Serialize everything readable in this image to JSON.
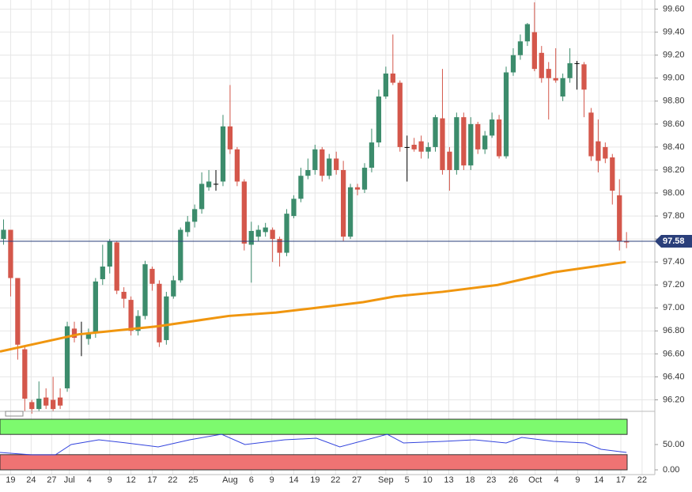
{
  "chart_data": {
    "type": "candlestick",
    "open": [
      97.6,
      97.68,
      97.26,
      96.64,
      96.18,
      96.12,
      96.22,
      96.2,
      96.22,
      96.3,
      96.82,
      96.78,
      96.73,
      96.78,
      97.25,
      97.36,
      97.57,
      97.14,
      97.07,
      96.8,
      96.93,
      97.34,
      97.21,
      96.72,
      97.1,
      97.24,
      97.66,
      97.75,
      97.86,
      98.05,
      98.08,
      98.1,
      98.58,
      98.38,
      98.1,
      97.55,
      97.62,
      97.66,
      97.68,
      97.6,
      97.48,
      97.8,
      97.95,
      98.15,
      98.2,
      98.38,
      98.15,
      98.3,
      98.2,
      97.62,
      98.05,
      98.03,
      98.22,
      98.44,
      98.84,
      99.04,
      98.96,
      98.4,
      98.42,
      98.45,
      98.36,
      98.4,
      98.65,
      98.36,
      98.2,
      98.66,
      98.24,
      98.6,
      98.38,
      98.5,
      98.64,
      98.32,
      99.05,
      99.2,
      99.32,
      99.4,
      99.22,
      99.08,
      99.0,
      98.84,
      99.0,
      99.13,
      99.12,
      98.7,
      98.45,
      98.4,
      98.31,
      97.98,
      97.58
    ],
    "high": [
      97.77,
      97.68,
      97.26,
      96.66,
      96.2,
      96.36,
      96.3,
      96.4,
      96.3,
      96.88,
      96.88,
      96.88,
      96.82,
      97.26,
      97.55,
      97.6,
      97.58,
      97.18,
      97.1,
      96.98,
      97.41,
      97.36,
      97.24,
      97.14,
      97.28,
      97.7,
      97.8,
      97.9,
      98.18,
      98.2,
      98.2,
      98.68,
      98.94,
      98.4,
      98.12,
      97.75,
      97.72,
      97.74,
      97.7,
      97.62,
      97.86,
      97.98,
      98.22,
      98.3,
      98.42,
      98.4,
      98.34,
      98.36,
      98.28,
      98.08,
      98.08,
      98.26,
      98.56,
      98.9,
      99.1,
      99.38,
      98.98,
      98.5,
      98.48,
      98.5,
      98.44,
      98.68,
      99.08,
      98.4,
      98.7,
      98.7,
      98.66,
      98.62,
      98.54,
      98.7,
      98.68,
      99.1,
      99.26,
      99.38,
      99.48,
      99.66,
      99.28,
      99.14,
      99.26,
      99.04,
      99.26,
      99.15,
      99.14,
      98.74,
      98.64,
      98.44,
      98.34,
      98.12,
      97.66
    ],
    "low": [
      97.55,
      97.1,
      96.55,
      96.1,
      96.08,
      96.1,
      96.12,
      96.1,
      96.12,
      96.27,
      96.7,
      96.58,
      96.68,
      96.74,
      97.2,
      97.3,
      97.12,
      97.0,
      96.76,
      96.76,
      96.9,
      97.15,
      96.66,
      96.68,
      97.08,
      97.22,
      97.62,
      97.7,
      97.82,
      98.02,
      98.02,
      98.06,
      98.34,
      98.06,
      97.5,
      97.22,
      97.58,
      97.62,
      97.4,
      97.36,
      97.45,
      97.78,
      97.92,
      98.12,
      98.16,
      98.1,
      98.12,
      98.16,
      97.58,
      97.6,
      97.98,
      98.0,
      98.18,
      98.4,
      98.82,
      98.94,
      98.36,
      98.1,
      98.36,
      98.3,
      98.3,
      98.36,
      98.16,
      98.02,
      98.16,
      98.2,
      98.2,
      98.34,
      98.34,
      98.48,
      98.3,
      98.3,
      99.02,
      99.16,
      99.28,
      99.06,
      98.96,
      98.64,
      98.96,
      98.8,
      98.96,
      98.9,
      98.66,
      98.28,
      98.18,
      98.26,
      97.9,
      97.5,
      97.52
    ],
    "close": [
      97.68,
      97.26,
      96.68,
      96.21,
      96.12,
      96.21,
      96.15,
      96.12,
      96.15,
      96.84,
      96.74,
      96.78,
      96.78,
      97.23,
      97.36,
      97.58,
      97.15,
      97.08,
      96.8,
      96.93,
      97.38,
      97.21,
      96.7,
      97.1,
      97.24,
      97.68,
      97.75,
      97.86,
      98.08,
      98.1,
      98.08,
      98.58,
      98.38,
      98.1,
      97.56,
      97.67,
      97.68,
      97.7,
      97.6,
      97.48,
      97.82,
      97.95,
      98.15,
      98.2,
      98.38,
      98.15,
      98.3,
      98.2,
      97.62,
      98.05,
      98.03,
      98.22,
      98.44,
      98.84,
      99.04,
      98.96,
      98.4,
      98.4,
      98.38,
      98.36,
      98.4,
      98.66,
      98.2,
      98.2,
      98.66,
      98.24,
      98.6,
      98.38,
      98.5,
      98.64,
      98.32,
      99.05,
      99.2,
      99.32,
      99.47,
      99.08,
      99.0,
      99.0,
      98.98,
      99.0,
      99.13,
      99.13,
      98.9,
      98.32,
      98.28,
      98.3,
      98.02,
      97.58,
      97.57
    ],
    "up_color": "#3c8c6c",
    "down_color": "#d4574b",
    "ma": {
      "color": "#f0960f",
      "x": [
        -0.5,
        10.6,
        21.8,
        31.8,
        38.5,
        44.1,
        50.8,
        55.3,
        62,
        69.8,
        77.7,
        87.9
      ],
      "values": [
        96.62,
        96.77,
        96.84,
        96.93,
        96.96,
        97.0,
        97.05,
        97.1,
        97.14,
        97.2,
        97.31,
        97.4
      ]
    },
    "last_price": 97.58,
    "xlim": [
      -0.5,
      92
    ],
    "ylim": [
      96.1,
      99.68
    ],
    "yticks": [
      {
        "value": 96.2,
        "label": "96.20"
      },
      {
        "value": 96.4,
        "label": "96.40"
      },
      {
        "value": 96.6,
        "label": "96.60"
      },
      {
        "value": 96.8,
        "label": "96.80"
      },
      {
        "value": 97.0,
        "label": "97.00"
      },
      {
        "value": 97.2,
        "label": "97.20"
      },
      {
        "value": 97.4,
        "label": "97.40"
      },
      {
        "value": 97.6,
        "label": "97.60"
      },
      {
        "value": 97.8,
        "label": "97.80"
      },
      {
        "value": 98.0,
        "label": "98.00"
      },
      {
        "value": 98.2,
        "label": "98.20"
      },
      {
        "value": 98.4,
        "label": "98.40"
      },
      {
        "value": 98.6,
        "label": "98.60"
      },
      {
        "value": 98.8,
        "label": "98.80"
      },
      {
        "value": 99.0,
        "label": "99.00"
      },
      {
        "value": 99.2,
        "label": "99.20"
      },
      {
        "value": 99.4,
        "label": "99.40"
      },
      {
        "value": 99.6,
        "label": "99.60"
      }
    ],
    "xticks": [
      {
        "value": 1,
        "label": "19"
      },
      {
        "value": 3.9,
        "label": "24"
      },
      {
        "value": 6.8,
        "label": "27"
      },
      {
        "value": 9.3,
        "label": "Jul"
      },
      {
        "value": 12.1,
        "label": "4"
      },
      {
        "value": 15,
        "label": "9"
      },
      {
        "value": 18,
        "label": "12"
      },
      {
        "value": 21,
        "label": "17"
      },
      {
        "value": 23.9,
        "label": "22"
      },
      {
        "value": 26.8,
        "label": "25"
      },
      {
        "value": 32,
        "label": "Aug"
      },
      {
        "value": 35,
        "label": "6"
      },
      {
        "value": 37.9,
        "label": "9"
      },
      {
        "value": 41,
        "label": "14"
      },
      {
        "value": 44,
        "label": "19"
      },
      {
        "value": 46.9,
        "label": "22"
      },
      {
        "value": 49.9,
        "label": "27"
      },
      {
        "value": 54,
        "label": "Sep"
      },
      {
        "value": 57,
        "label": "5"
      },
      {
        "value": 59.9,
        "label": "10"
      },
      {
        "value": 62.9,
        "label": "13"
      },
      {
        "value": 65.9,
        "label": "18"
      },
      {
        "value": 68.9,
        "label": "23"
      },
      {
        "value": 72,
        "label": "26"
      },
      {
        "value": 75.1,
        "label": "Oct"
      },
      {
        "value": 78.1,
        "label": "4"
      },
      {
        "value": 81.1,
        "label": "9"
      },
      {
        "value": 84.1,
        "label": "14"
      },
      {
        "value": 87.2,
        "label": "17"
      },
      {
        "value": 90.2,
        "label": "22"
      }
    ],
    "rsi": {
      "color": "#3344dd",
      "ylim": [
        0,
        100
      ],
      "yticks": [
        {
          "value": 50,
          "label": "50.00"
        },
        {
          "value": 0,
          "label": "0.00"
        }
      ],
      "overbought": [
        70,
        100
      ],
      "overbought_color": "#7dfa6e",
      "oversold": [
        0,
        30
      ],
      "oversold_color": "#ef7373",
      "x": [
        -0.5,
        3.97,
        7.32,
        9.55,
        13.46,
        17.37,
        21.84,
        26.3,
        30.8,
        34.1,
        39.7,
        44.2,
        47.5,
        54.2,
        56.5,
        62.1,
        66.5,
        71,
        73.2,
        77.7,
        82.2,
        84.4,
        88
      ],
      "values": [
        34.4,
        29.7,
        29.7,
        50,
        59.4,
        53.1,
        45.3,
        59.4,
        70.3,
        50,
        59.4,
        62.5,
        45.3,
        70.3,
        53.1,
        56.3,
        59.4,
        53.1,
        64.1,
        56.3,
        53.1,
        40.6,
        34.4
      ]
    },
    "grid": true
  }
}
